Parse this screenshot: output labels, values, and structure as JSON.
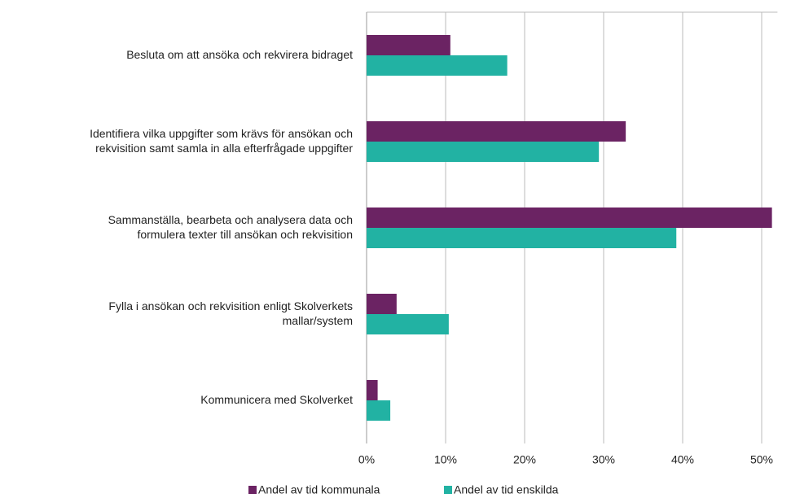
{
  "chart_data": {
    "type": "bar",
    "orientation": "horizontal",
    "categories": [
      "Besluta om att ansöka och rekvirera bidraget",
      "Identifiera vilka uppgifter som krävs för ansökan och\nrekvisition samt samla in alla efterfrågade uppgifter",
      "Sammanställa, bearbeta och analysera data och\nformulera texter till ansökan och rekvisition",
      "Fylla i ansökan och rekvisition enligt Skolverkets\nmallar/system",
      "Kommunicera med Skolverket"
    ],
    "series": [
      {
        "name": "Andel av tid kommunala",
        "color": "#6b2363",
        "values": [
          10.6,
          32.8,
          51.3,
          3.8,
          1.4
        ]
      },
      {
        "name": "Andel av tid enskilda",
        "color": "#22b2a3",
        "values": [
          17.8,
          29.4,
          39.2,
          10.4,
          3.0
        ]
      }
    ],
    "xlim": [
      0,
      52
    ],
    "xticks": [
      {
        "value": 0,
        "label": "0%"
      },
      {
        "value": 10,
        "label": "10%"
      },
      {
        "value": 20,
        "label": "20%"
      },
      {
        "value": 30,
        "label": "30%"
      },
      {
        "value": 40,
        "label": "40%"
      },
      {
        "value": 50,
        "label": "50%"
      }
    ],
    "grid": true,
    "legend": "bottom"
  }
}
